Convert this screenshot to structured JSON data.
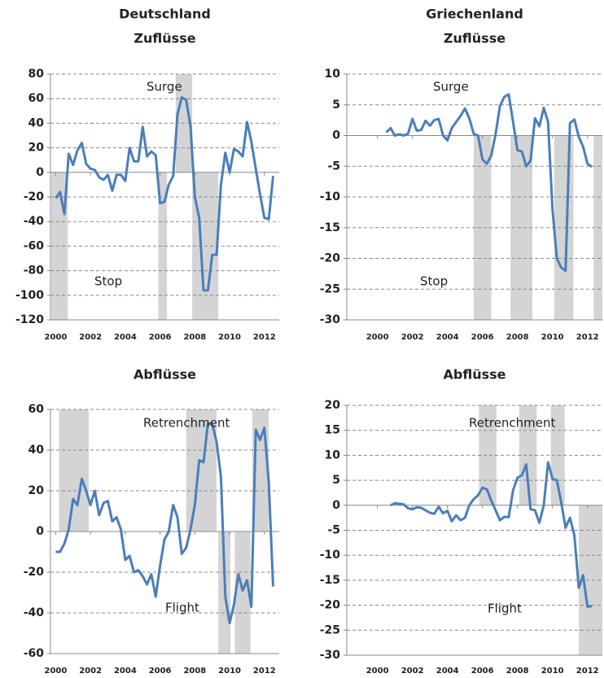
{
  "chart_data": [
    {
      "type": "line",
      "title": "Deutschland",
      "subtitle": "Zuflüsse",
      "annotations": [
        "Surge",
        "Stop"
      ],
      "x": [
        2000,
        2000.25,
        2000.5,
        2000.75,
        2001,
        2001.25,
        2001.5,
        2001.75,
        2002,
        2002.25,
        2002.5,
        2002.75,
        2003,
        2003.25,
        2003.5,
        2003.75,
        2004,
        2004.25,
        2004.5,
        2004.75,
        2005,
        2005.25,
        2005.5,
        2005.75,
        2006,
        2006.25,
        2006.5,
        2006.75,
        2007,
        2007.25,
        2007.5,
        2007.75,
        2008,
        2008.25,
        2008.5,
        2008.75,
        2009,
        2009.25,
        2009.5,
        2009.75,
        2010,
        2010.25,
        2010.5,
        2010.75,
        2011,
        2011.25,
        2011.5,
        2011.75,
        2012,
        2012.25,
        2012.5
      ],
      "series": [
        {
          "color": "#4a7ebb",
          "values": [
            -21,
            -16,
            -34,
            15,
            6,
            18,
            24,
            7,
            3,
            2,
            -4,
            -6,
            -2,
            -15,
            -2,
            -2,
            -7,
            20,
            9,
            9,
            37,
            13,
            17,
            14,
            -25,
            -24,
            -10,
            -3,
            47,
            61,
            59,
            38,
            -20,
            -37,
            -96,
            -96,
            -67,
            -67,
            -10,
            16,
            0,
            19,
            17,
            13,
            41,
            25,
            3,
            -18,
            -37,
            -38,
            -3
          ]
        }
      ],
      "shaded": [
        {
          "x": [
            1999.75,
            2000.7
          ],
          "y": [
            0,
            -120
          ]
        },
        {
          "x": [
            2005.9,
            2006.4
          ],
          "y": [
            0,
            -120
          ]
        },
        {
          "x": [
            2006.9,
            2007.85
          ],
          "y": [
            0,
            80
          ]
        },
        {
          "x": [
            2007.85,
            2009.35
          ],
          "y": [
            0,
            -120
          ]
        }
      ],
      "xlim": [
        1999.7,
        2012.85
      ],
      "xticks": [
        2000,
        2002,
        2004,
        2006,
        2008,
        2010,
        2012
      ],
      "ylim": [
        -120,
        80
      ],
      "yticks": [
        -120,
        -100,
        -80,
        -60,
        -40,
        -20,
        0,
        20,
        40,
        60,
        80
      ],
      "grid": true
    },
    {
      "type": "line",
      "title": "Griechenland",
      "subtitle": "Zuflüsse",
      "annotations": [
        "Surge",
        "Stop"
      ],
      "x": [
        2000.5,
        2000.75,
        2001,
        2001.25,
        2001.5,
        2001.75,
        2002,
        2002.25,
        2002.5,
        2002.75,
        2003,
        2003.25,
        2003.5,
        2003.75,
        2004,
        2004.25,
        2004.5,
        2004.75,
        2005,
        2005.25,
        2005.5,
        2005.75,
        2006,
        2006.25,
        2006.5,
        2006.75,
        2007,
        2007.25,
        2007.5,
        2007.75,
        2008,
        2008.25,
        2008.5,
        2008.75,
        2009,
        2009.25,
        2009.5,
        2009.75,
        2010,
        2010.25,
        2010.5,
        2010.75,
        2011,
        2011.25,
        2011.5,
        2011.75,
        2012,
        2012.25
      ],
      "series": [
        {
          "color": "#4a7ebb",
          "values": [
            0.5,
            1.2,
            0,
            0.2,
            0,
            0.3,
            2.7,
            0.8,
            0.9,
            2.4,
            1.6,
            2.5,
            2.7,
            0,
            -0.8,
            1.2,
            2.2,
            3.2,
            4.4,
            2.8,
            0.3,
            0,
            -3.9,
            -4.6,
            -3.3,
            0.2,
            4.8,
            6.3,
            6.7,
            2.2,
            -2.4,
            -2.6,
            -5,
            -4.1,
            2.8,
            1.5,
            4.5,
            2.2,
            -12,
            -20,
            -21.5,
            -22,
            2,
            2.6,
            -0.2,
            -1.8,
            -4.6,
            -5.1
          ]
        }
      ],
      "shaded": [
        {
          "x": [
            2005.5,
            2006.5
          ],
          "y": [
            0,
            -30
          ]
        },
        {
          "x": [
            2007.6,
            2008.85
          ],
          "y": [
            0,
            -30
          ]
        },
        {
          "x": [
            2010.1,
            2011.2
          ],
          "y": [
            0,
            -30
          ]
        },
        {
          "x": [
            2012.35,
            2012.85
          ],
          "y": [
            0,
            -30
          ]
        }
      ],
      "xlim": [
        1998.25,
        2012.85
      ],
      "xticks": [
        2000,
        2002,
        2004,
        2006,
        2008,
        2010,
        2012
      ],
      "ylim": [
        -30,
        10
      ],
      "yticks": [
        -30,
        -25,
        -20,
        -15,
        -10,
        -5,
        0,
        5,
        10
      ],
      "grid": true
    },
    {
      "type": "line",
      "title": "Abflüsse",
      "annotations": [
        "Retrenchment",
        "Flight"
      ],
      "x": [
        2000,
        2000.25,
        2000.5,
        2000.75,
        2001,
        2001.25,
        2001.5,
        2001.75,
        2002,
        2002.25,
        2002.5,
        2002.75,
        2003,
        2003.25,
        2003.5,
        2003.75,
        2004,
        2004.25,
        2004.5,
        2004.75,
        2005,
        2005.25,
        2005.5,
        2005.75,
        2006,
        2006.25,
        2006.5,
        2006.75,
        2007,
        2007.25,
        2007.5,
        2007.75,
        2008,
        2008.25,
        2008.5,
        2008.75,
        2009,
        2009.25,
        2009.5,
        2009.75,
        2010,
        2010.25,
        2010.5,
        2010.75,
        2011,
        2011.25,
        2011.5,
        2011.75,
        2012,
        2012.25,
        2012.5
      ],
      "series": [
        {
          "color": "#4a7ebb",
          "values": [
            -10,
            -10,
            -6,
            1,
            16,
            13,
            26,
            20,
            13,
            20,
            8,
            14,
            15,
            5,
            7,
            1,
            -14,
            -12,
            -20,
            -19,
            -22,
            -26,
            -21,
            -32,
            -17,
            -4,
            0,
            13,
            7,
            -11,
            -8,
            1,
            13,
            35,
            34,
            53,
            53,
            44,
            27,
            -32,
            -45,
            -36,
            -21,
            -29,
            -24,
            -37,
            50,
            45,
            51,
            24,
            -27
          ]
        }
      ],
      "shaded": [
        {
          "x": [
            2000.2,
            2001.9
          ],
          "y": [
            0,
            60
          ]
        },
        {
          "x": [
            2007.5,
            2009.25
          ],
          "y": [
            0,
            60
          ]
        },
        {
          "x": [
            2009.35,
            2010.05
          ],
          "y": [
            0,
            -60
          ]
        },
        {
          "x": [
            2010.3,
            2011.2
          ],
          "y": [
            0,
            -60
          ]
        },
        {
          "x": [
            2011.3,
            2012.25
          ],
          "y": [
            0,
            60
          ]
        }
      ],
      "xlim": [
        1999.7,
        2012.85
      ],
      "xticks": [
        2000,
        2002,
        2004,
        2006,
        2008,
        2010,
        2012
      ],
      "ylim": [
        -60,
        60
      ],
      "yticks": [
        -60,
        -40,
        -20,
        0,
        20,
        40,
        60
      ],
      "grid": true
    },
    {
      "type": "line",
      "title": "Abflüsse",
      "annotations": [
        "Retrenchment",
        "Flight"
      ],
      "x": [
        2000.75,
        2001,
        2001.25,
        2001.5,
        2001.75,
        2002,
        2002.25,
        2002.5,
        2002.75,
        2003,
        2003.25,
        2003.5,
        2003.75,
        2004,
        2004.25,
        2004.5,
        2004.75,
        2005,
        2005.25,
        2005.5,
        2005.75,
        2006,
        2006.25,
        2006.5,
        2006.75,
        2007,
        2007.25,
        2007.5,
        2007.75,
        2008,
        2008.25,
        2008.5,
        2008.75,
        2009,
        2009.25,
        2009.5,
        2009.75,
        2010,
        2010.25,
        2010.5,
        2010.75,
        2011,
        2011.25,
        2011.5,
        2011.75,
        2012,
        2012.25
      ],
      "series": [
        {
          "color": "#4a7ebb",
          "values": [
            0,
            0.4,
            0.3,
            0.2,
            -0.6,
            -0.8,
            -0.4,
            -0.5,
            -1,
            -1.5,
            -1.7,
            -0.3,
            -1.6,
            -1.1,
            -3.2,
            -2,
            -3,
            -2.5,
            0,
            1.2,
            2,
            3.5,
            3.2,
            1,
            -1,
            -3,
            -2.3,
            -2.4,
            3,
            5.5,
            6,
            8.2,
            -0.8,
            -1,
            -3.5,
            0,
            8.6,
            5.3,
            5,
            0.5,
            -4.5,
            -2.5,
            -6,
            -16.5,
            -14,
            -20.3,
            -20.2
          ]
        }
      ],
      "shaded": [
        {
          "x": [
            2005.8,
            2006.8
          ],
          "y": [
            0,
            20
          ]
        },
        {
          "x": [
            2008.1,
            2009.1
          ],
          "y": [
            0,
            20
          ]
        },
        {
          "x": [
            2009.9,
            2010.7
          ],
          "y": [
            0,
            20
          ]
        },
        {
          "x": [
            2011.5,
            2012.85
          ],
          "y": [
            0,
            -30
          ]
        }
      ],
      "xlim": [
        1998.25,
        2012.85
      ],
      "xticks": [
        2000,
        2002,
        2004,
        2006,
        2008,
        2010,
        2012
      ],
      "ylim": [
        -30,
        20
      ],
      "yticks": [
        -30,
        -25,
        -20,
        -15,
        -10,
        -5,
        0,
        5,
        10,
        15,
        20
      ],
      "grid": true
    }
  ]
}
